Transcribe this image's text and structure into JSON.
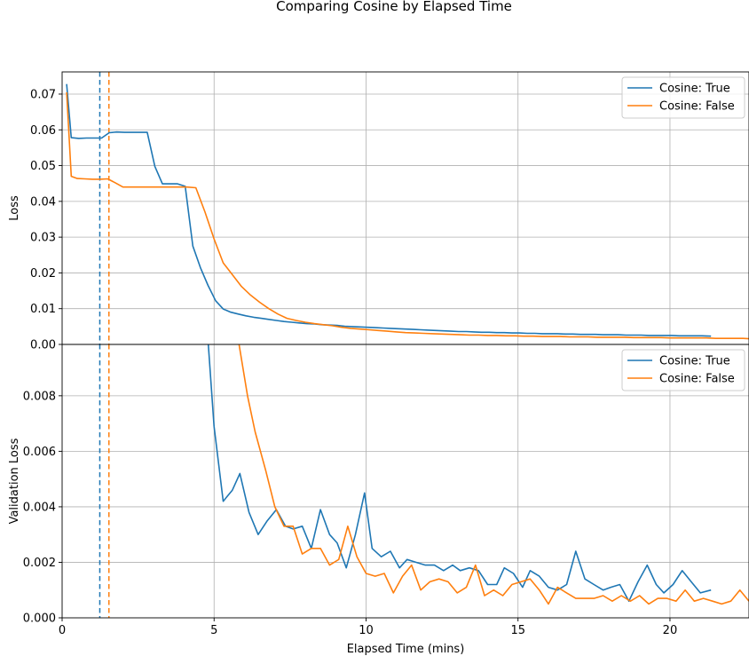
{
  "chart_data": {
    "type": "line",
    "title": "Comparing Cosine by Elapsed Time",
    "xlabel": "Elapsed Time (mins)",
    "xlim": [
      0,
      22.6
    ],
    "x_ticks": [
      0,
      5,
      10,
      15,
      20
    ],
    "grid": true,
    "colors": {
      "cosine_true": "#1f77b4",
      "cosine_false": "#ff7f0e"
    },
    "vlines": [
      {
        "x": 1.24,
        "color": "#1f77b4",
        "style": "dashed"
      },
      {
        "x": 1.54,
        "color": "#ff7f0e",
        "style": "dashed"
      }
    ],
    "panels": [
      {
        "ylabel": "Loss",
        "ylim": [
          0,
          0.0762
        ],
        "y_ticks": [
          0.0,
          0.01,
          0.02,
          0.03,
          0.04,
          0.05,
          0.06,
          0.07
        ],
        "y_tick_labels": [
          "0.00",
          "0.01",
          "0.02",
          "0.03",
          "0.04",
          "0.05",
          "0.06",
          "0.07"
        ],
        "legend_position": "top-right",
        "series": [
          {
            "name": "Cosine: True",
            "color": "#1f77b4",
            "x": [
              0.15,
              0.3,
              0.55,
              0.8,
              1.05,
              1.3,
              1.55,
              1.8,
              2.05,
              2.3,
              2.55,
              2.8,
              3.05,
              3.3,
              3.55,
              3.8,
              4.05,
              4.3,
              4.55,
              4.8,
              5.05,
              5.3,
              5.55,
              5.8,
              6.05,
              6.3,
              6.55,
              6.8,
              7.05,
              7.3,
              7.55,
              7.8,
              8.05,
              8.3,
              8.55,
              8.8,
              9.05,
              9.3,
              9.55,
              9.8,
              10.05,
              10.3,
              10.55,
              10.8,
              11.05,
              11.3,
              11.55,
              11.8,
              12.05,
              12.3,
              12.55,
              12.8,
              13.05,
              13.3,
              13.55,
              13.8,
              14.05,
              14.3,
              14.55,
              14.8,
              15.05,
              15.3,
              15.55,
              15.8,
              16.05,
              16.3,
              16.55,
              16.8,
              17.05,
              17.3,
              17.55,
              17.8,
              18.05,
              18.3,
              18.55,
              18.8,
              19.05,
              19.3,
              19.55,
              19.8,
              20.05,
              20.3,
              20.55,
              20.8,
              21.05,
              21.35
            ],
            "values": [
              0.0728,
              0.0578,
              0.0576,
              0.0577,
              0.0577,
              0.0577,
              0.0592,
              0.0594,
              0.0593,
              0.0593,
              0.0593,
              0.0593,
              0.0498,
              0.0449,
              0.0449,
              0.0449,
              0.0442,
              0.0275,
              0.0215,
              0.0165,
              0.0122,
              0.0099,
              0.009,
              0.0085,
              0.008,
              0.0076,
              0.0073,
              0.007,
              0.0067,
              0.0064,
              0.0062,
              0.006,
              0.0058,
              0.0057,
              0.0055,
              0.0054,
              0.0053,
              0.0051,
              0.005,
              0.0049,
              0.0048,
              0.0047,
              0.0046,
              0.0045,
              0.0044,
              0.0043,
              0.0042,
              0.0041,
              0.004,
              0.0039,
              0.0038,
              0.0037,
              0.0036,
              0.0036,
              0.0035,
              0.0034,
              0.0034,
              0.0033,
              0.0033,
              0.0032,
              0.0032,
              0.0031,
              0.0031,
              0.003,
              0.003,
              0.003,
              0.0029,
              0.0029,
              0.0028,
              0.0028,
              0.0028,
              0.0027,
              0.0027,
              0.0027,
              0.0026,
              0.0026,
              0.0026,
              0.0025,
              0.0025,
              0.0025,
              0.0025,
              0.0024,
              0.0024,
              0.0024,
              0.0024,
              0.0023
            ]
          },
          {
            "name": "Cosine: False",
            "color": "#ff7f0e",
            "x": [
              0.15,
              0.3,
              0.5,
              0.75,
              1.0,
              1.25,
              1.5,
              1.75,
              2.0,
              2.3,
              2.6,
              2.9,
              3.2,
              3.5,
              3.8,
              4.1,
              4.4,
              4.7,
              5.0,
              5.3,
              5.6,
              5.9,
              6.2,
              6.5,
              6.8,
              7.1,
              7.4,
              7.7,
              8.0,
              8.3,
              8.6,
              8.9,
              9.2,
              9.5,
              9.8,
              10.1,
              10.4,
              10.7,
              11.0,
              11.3,
              11.6,
              11.9,
              12.2,
              12.5,
              12.8,
              13.1,
              13.4,
              13.7,
              14.0,
              14.3,
              14.6,
              14.9,
              15.2,
              15.5,
              15.8,
              16.1,
              16.4,
              16.7,
              17.0,
              17.3,
              17.6,
              17.9,
              18.2,
              18.5,
              18.8,
              19.1,
              19.4,
              19.7,
              20.0,
              20.3,
              20.6,
              20.9,
              21.2,
              21.5,
              21.8,
              22.1,
              22.4,
              22.6
            ],
            "values": [
              0.0705,
              0.047,
              0.0464,
              0.0463,
              0.0462,
              0.0462,
              0.0463,
              0.0452,
              0.044,
              0.044,
              0.044,
              0.044,
              0.044,
              0.044,
              0.044,
              0.044,
              0.0438,
              0.037,
              0.0295,
              0.0228,
              0.0195,
              0.0162,
              0.0138,
              0.0118,
              0.01,
              0.0085,
              0.0073,
              0.0067,
              0.0062,
              0.0058,
              0.0055,
              0.0052,
              0.0048,
              0.0045,
              0.0043,
              0.0041,
              0.0039,
              0.0037,
              0.0035,
              0.0033,
              0.0032,
              0.0031,
              0.003,
              0.0029,
              0.0028,
              0.0027,
              0.0026,
              0.0026,
              0.0025,
              0.0025,
              0.0024,
              0.0024,
              0.0023,
              0.0023,
              0.0022,
              0.0022,
              0.0022,
              0.0021,
              0.0021,
              0.0021,
              0.002,
              0.002,
              0.002,
              0.002,
              0.0019,
              0.0019,
              0.0019,
              0.0019,
              0.0018,
              0.0018,
              0.0018,
              0.0018,
              0.0018,
              0.0017,
              0.0017,
              0.0017,
              0.0017,
              0.0016
            ]
          }
        ]
      },
      {
        "ylabel": "Validation Loss",
        "ylim": [
          0,
          0.00985
        ],
        "y_ticks": [
          0.0,
          0.002,
          0.004,
          0.006,
          0.008
        ],
        "y_tick_labels": [
          "0.000",
          "0.002",
          "0.004",
          "0.006",
          "0.008"
        ],
        "legend_position": "top-right",
        "series": [
          {
            "name": "Cosine: True",
            "color": "#1f77b4",
            "x": [
              4.8,
              5.0,
              5.3,
              5.6,
              5.85,
              6.15,
              6.45,
              6.75,
              7.05,
              7.35,
              7.6,
              7.9,
              8.2,
              8.5,
              8.8,
              9.05,
              9.35,
              9.65,
              9.95,
              10.2,
              10.5,
              10.8,
              11.1,
              11.35,
              11.65,
              11.95,
              12.25,
              12.55,
              12.85,
              13.1,
              13.4,
              13.7,
              14.0,
              14.3,
              14.55,
              14.85,
              15.15,
              15.4,
              15.7,
              16.0,
              16.3,
              16.6,
              16.9,
              17.2,
              17.5,
              17.8,
              18.05,
              18.35,
              18.65,
              18.95,
              19.25,
              19.55,
              19.8,
              20.1,
              20.4,
              20.7,
              21.0,
              21.35
            ],
            "values": [
              0.01,
              0.0069,
              0.0042,
              0.0046,
              0.0052,
              0.0038,
              0.003,
              0.0035,
              0.0039,
              0.0033,
              0.0032,
              0.0033,
              0.0025,
              0.0039,
              0.003,
              0.0027,
              0.0018,
              0.003,
              0.0045,
              0.0025,
              0.0022,
              0.0024,
              0.0018,
              0.0021,
              0.002,
              0.0019,
              0.0019,
              0.0017,
              0.0019,
              0.0017,
              0.0018,
              0.0017,
              0.0012,
              0.0012,
              0.0018,
              0.0016,
              0.0011,
              0.0017,
              0.0015,
              0.0011,
              0.001,
              0.0012,
              0.0024,
              0.0014,
              0.0012,
              0.001,
              0.0011,
              0.0012,
              0.0006,
              0.0013,
              0.0019,
              0.0012,
              0.0009,
              0.0012,
              0.0017,
              0.0013,
              0.0009,
              0.001
            ]
          },
          {
            "name": "Cosine: False",
            "color": "#ff7f0e",
            "x": [
              5.8,
              6.1,
              6.35,
              6.7,
              7.0,
              7.3,
              7.6,
              7.9,
              8.2,
              8.5,
              8.8,
              9.1,
              9.4,
              9.7,
              10.0,
              10.3,
              10.6,
              10.9,
              11.2,
              11.5,
              11.8,
              12.1,
              12.4,
              12.7,
              13.0,
              13.3,
              13.6,
              13.9,
              14.2,
              14.5,
              14.8,
              15.1,
              15.4,
              15.7,
              16.0,
              16.3,
              16.6,
              16.9,
              17.2,
              17.5,
              17.8,
              18.1,
              18.4,
              18.7,
              19.0,
              19.3,
              19.6,
              19.9,
              20.2,
              20.5,
              20.8,
              21.1,
              21.4,
              21.7,
              22.0,
              22.3,
              22.6
            ],
            "values": [
              0.01,
              0.008,
              0.0067,
              0.0053,
              0.004,
              0.0033,
              0.0033,
              0.0023,
              0.0025,
              0.0025,
              0.0019,
              0.0021,
              0.0033,
              0.0022,
              0.0016,
              0.0015,
              0.0016,
              0.0009,
              0.0015,
              0.0019,
              0.001,
              0.0013,
              0.0014,
              0.0013,
              0.0009,
              0.0011,
              0.0019,
              0.0008,
              0.001,
              0.0008,
              0.0012,
              0.0013,
              0.0014,
              0.001,
              0.0005,
              0.0011,
              0.0009,
              0.0007,
              0.0007,
              0.0007,
              0.0008,
              0.0006,
              0.0008,
              0.0006,
              0.0008,
              0.0005,
              0.0007,
              0.0007,
              0.0006,
              0.001,
              0.0006,
              0.0007,
              0.0006,
              0.0005,
              0.0006,
              0.001,
              0.0006
            ]
          }
        ]
      }
    ]
  }
}
